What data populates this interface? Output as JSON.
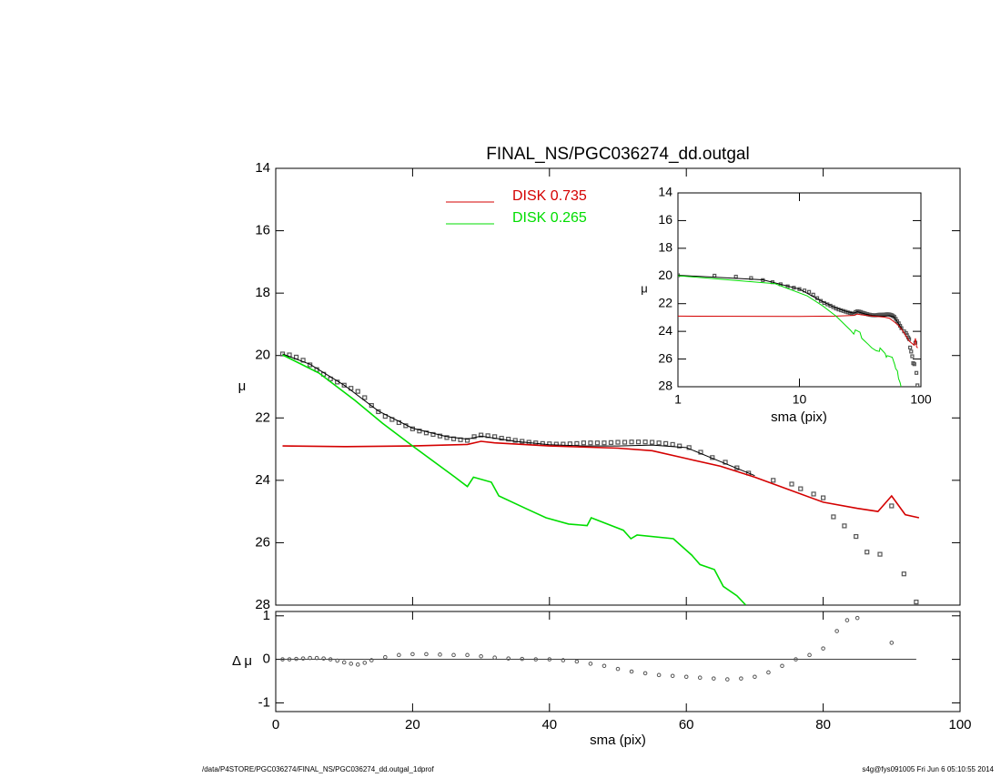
{
  "chart_data": [
    {
      "type": "profile",
      "title": "FINAL_NS/PGC036274_dd.outgal",
      "y_label": "μ",
      "xlim": [
        0,
        100
      ],
      "xticks": [
        0,
        20,
        40,
        60,
        80,
        100
      ],
      "ylim": [
        28,
        14
      ],
      "yticks": [
        14,
        16,
        18,
        20,
        22,
        24,
        26,
        28
      ],
      "points": {
        "color": "#555555",
        "x": [
          1,
          2,
          3,
          4,
          5,
          6,
          7,
          8,
          9,
          10,
          11,
          12,
          13,
          14,
          15,
          16,
          17,
          18,
          19,
          20,
          21,
          22,
          23,
          24,
          25,
          26,
          27,
          28,
          29,
          30,
          31,
          32,
          33,
          34,
          35,
          36,
          37,
          38,
          39,
          40,
          41,
          42,
          43,
          44,
          45,
          46,
          47,
          48,
          49,
          50,
          51,
          52,
          53,
          54,
          55,
          56,
          57,
          58,
          59,
          60.4,
          62.1,
          63.8,
          65.7,
          67.4,
          69.1,
          72.7,
          75.4,
          76.7,
          78.6,
          80,
          81.5,
          83.1,
          84.8,
          86.4,
          88.3,
          90,
          91.8,
          93.6
        ],
        "values": [
          19.95,
          19.98,
          20.05,
          20.15,
          20.3,
          20.45,
          20.6,
          20.75,
          20.85,
          20.95,
          21.05,
          21.15,
          21.35,
          21.6,
          21.8,
          21.95,
          22.05,
          22.15,
          22.25,
          22.35,
          22.42,
          22.48,
          22.53,
          22.58,
          22.63,
          22.67,
          22.7,
          22.72,
          22.6,
          22.55,
          22.57,
          22.6,
          22.65,
          22.68,
          22.72,
          22.75,
          22.78,
          22.8,
          22.82,
          22.83,
          22.84,
          22.84,
          22.83,
          22.82,
          22.8,
          22.8,
          22.8,
          22.8,
          22.79,
          22.78,
          22.78,
          22.77,
          22.77,
          22.77,
          22.78,
          22.8,
          22.82,
          22.85,
          22.9,
          22.95,
          23.1,
          23.27,
          23.42,
          23.6,
          23.77,
          24.0,
          24.12,
          24.27,
          24.44,
          24.56,
          25.17,
          25.46,
          25.8,
          26.3,
          26.37,
          24.82,
          27.0,
          27.9
        ]
      },
      "series": [
        {
          "name": "DISK  0.735",
          "color": "#d40000",
          "x": [
            1,
            10,
            20,
            28,
            30,
            32,
            40,
            50,
            55,
            60,
            65,
            70,
            75,
            80,
            85,
            88,
            90,
            92,
            94
          ],
          "values": [
            22.9,
            22.92,
            22.9,
            22.85,
            22.75,
            22.8,
            22.9,
            22.97,
            23.05,
            23.3,
            23.55,
            23.9,
            24.3,
            24.7,
            24.9,
            25.0,
            24.5,
            25.1,
            25.2
          ]
        },
        {
          "name": "DISK  0.265",
          "color": "#00dd00",
          "x": [
            1,
            6.3,
            11.6,
            15.6,
            20,
            26.2,
            28,
            28.9,
            31.5,
            32.6,
            36.8,
            39.5,
            42.8,
            45.5,
            46.1,
            50.8,
            51.9,
            52.8,
            58.1,
            60.8,
            62,
            64.1,
            65.4,
            67.4,
            68.7
          ],
          "values": [
            19.98,
            20.56,
            21.44,
            22.17,
            22.9,
            23.9,
            24.2,
            23.9,
            24.06,
            24.5,
            24.93,
            25.2,
            25.4,
            25.45,
            25.2,
            25.6,
            25.87,
            25.75,
            25.87,
            26.4,
            26.7,
            26.86,
            27.4,
            27.7,
            28.0
          ]
        }
      ],
      "model": {
        "color": "#000000",
        "x": [
          1,
          5,
          10,
          15,
          20,
          25,
          28,
          30,
          35,
          40,
          45,
          50,
          55,
          60,
          65,
          70
        ],
        "values": [
          19.95,
          20.28,
          20.95,
          21.78,
          22.33,
          22.6,
          22.68,
          22.58,
          22.75,
          22.86,
          22.9,
          22.9,
          22.87,
          22.95,
          23.4,
          23.85
        ]
      }
    },
    {
      "type": "residual",
      "x_label": "sma (pix)",
      "y_label": "Δ μ",
      "xlim": [
        0,
        100
      ],
      "xticks": [
        0,
        20,
        40,
        60,
        80,
        100
      ],
      "ylim": [
        -1.2,
        1.1
      ],
      "yticks": [
        -1,
        0,
        1
      ],
      "points": {
        "color": "#555555",
        "x": [
          1,
          2,
          3,
          4,
          5,
          6,
          7,
          8,
          9,
          10,
          11,
          12,
          13,
          14,
          16,
          18,
          20,
          22,
          24,
          26,
          28,
          30,
          32,
          34,
          36,
          38,
          40,
          42,
          44,
          46,
          48,
          50,
          52,
          54,
          56,
          58,
          60,
          62,
          64,
          66,
          68,
          70,
          72,
          74,
          76,
          78,
          80,
          82,
          83.5,
          85,
          90
        ],
        "values": [
          0,
          0,
          0.01,
          0.02,
          0.03,
          0.03,
          0.02,
          0,
          -0.03,
          -0.07,
          -0.1,
          -0.12,
          -0.08,
          -0.02,
          0.05,
          0.1,
          0.12,
          0.12,
          0.11,
          0.1,
          0.1,
          0.07,
          0.04,
          0.02,
          0.01,
          0,
          0,
          -0.02,
          -0.05,
          -0.1,
          -0.15,
          -0.22,
          -0.28,
          -0.32,
          -0.36,
          -0.38,
          -0.4,
          -0.42,
          -0.44,
          -0.46,
          -0.44,
          -0.4,
          -0.3,
          -0.15,
          0,
          0.1,
          0.25,
          0.65,
          0.9,
          0.95,
          0.38
        ]
      }
    },
    {
      "type": "inset",
      "x_label": "sma (pix)",
      "y_label": "μ",
      "xlog": true,
      "xlim": [
        1,
        100
      ],
      "xticks": [
        1,
        10,
        100
      ],
      "ylim": [
        28,
        14
      ],
      "yticks": [
        14,
        16,
        18,
        20,
        22,
        24,
        26,
        28
      ]
    }
  ],
  "footer": {
    "left": "/data/P4STORE/PGC036274/FINAL_NS/PGC036274_dd.outgal_1dprof",
    "right": "s4g@fys091005  Fri Jun  6 05:10:55 2014"
  }
}
